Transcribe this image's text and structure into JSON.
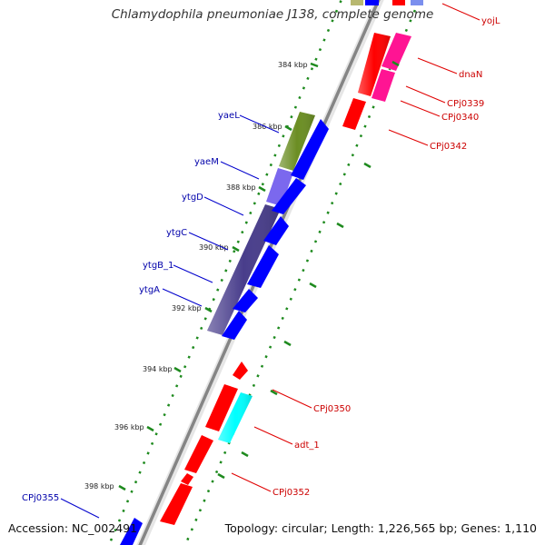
{
  "title": "Chlamydophila pneumoniae J138, complete genome",
  "footer": {
    "accession": "Accession: NC_002491",
    "info": "Topology: circular; Length: 1,226,565 bp; Genes: 1,110"
  },
  "ticks": [
    "384 kbp",
    "386 kbp",
    "388 kbp",
    "390 kbp",
    "392 kbp",
    "394 kbp",
    "396 kbp",
    "398 kbp"
  ],
  "gene_labels": {
    "yojL": "yojL",
    "dnaN": "dnaN",
    "CPj0339": "CPj0339",
    "CPj0340": "CPj0340",
    "CPj0342": "CPj0342",
    "yaeL": "yaeL",
    "yaeM": "yaeM",
    "ytgD": "ytgD",
    "ytgC": "ytgC",
    "ytgB_1": "ytgB_1",
    "ytgA": "ytgA",
    "CPj0350": "CPj0350",
    "adt_1": "adt_1",
    "CPj0352": "CPj0352",
    "CPj0355": "CPj0355"
  },
  "colors": {
    "backbone": "#8a8a8a",
    "dots": "#1e8a1e",
    "red": "#ff0000",
    "blue": "#0000ff",
    "magenta": "#ff1493",
    "olive": "#6b8e23",
    "slate": "#483d8b",
    "lightslate": "#7b68ee",
    "cyan": "#00ffff",
    "label_red": "#cc0000",
    "label_blue": "#0000aa"
  }
}
